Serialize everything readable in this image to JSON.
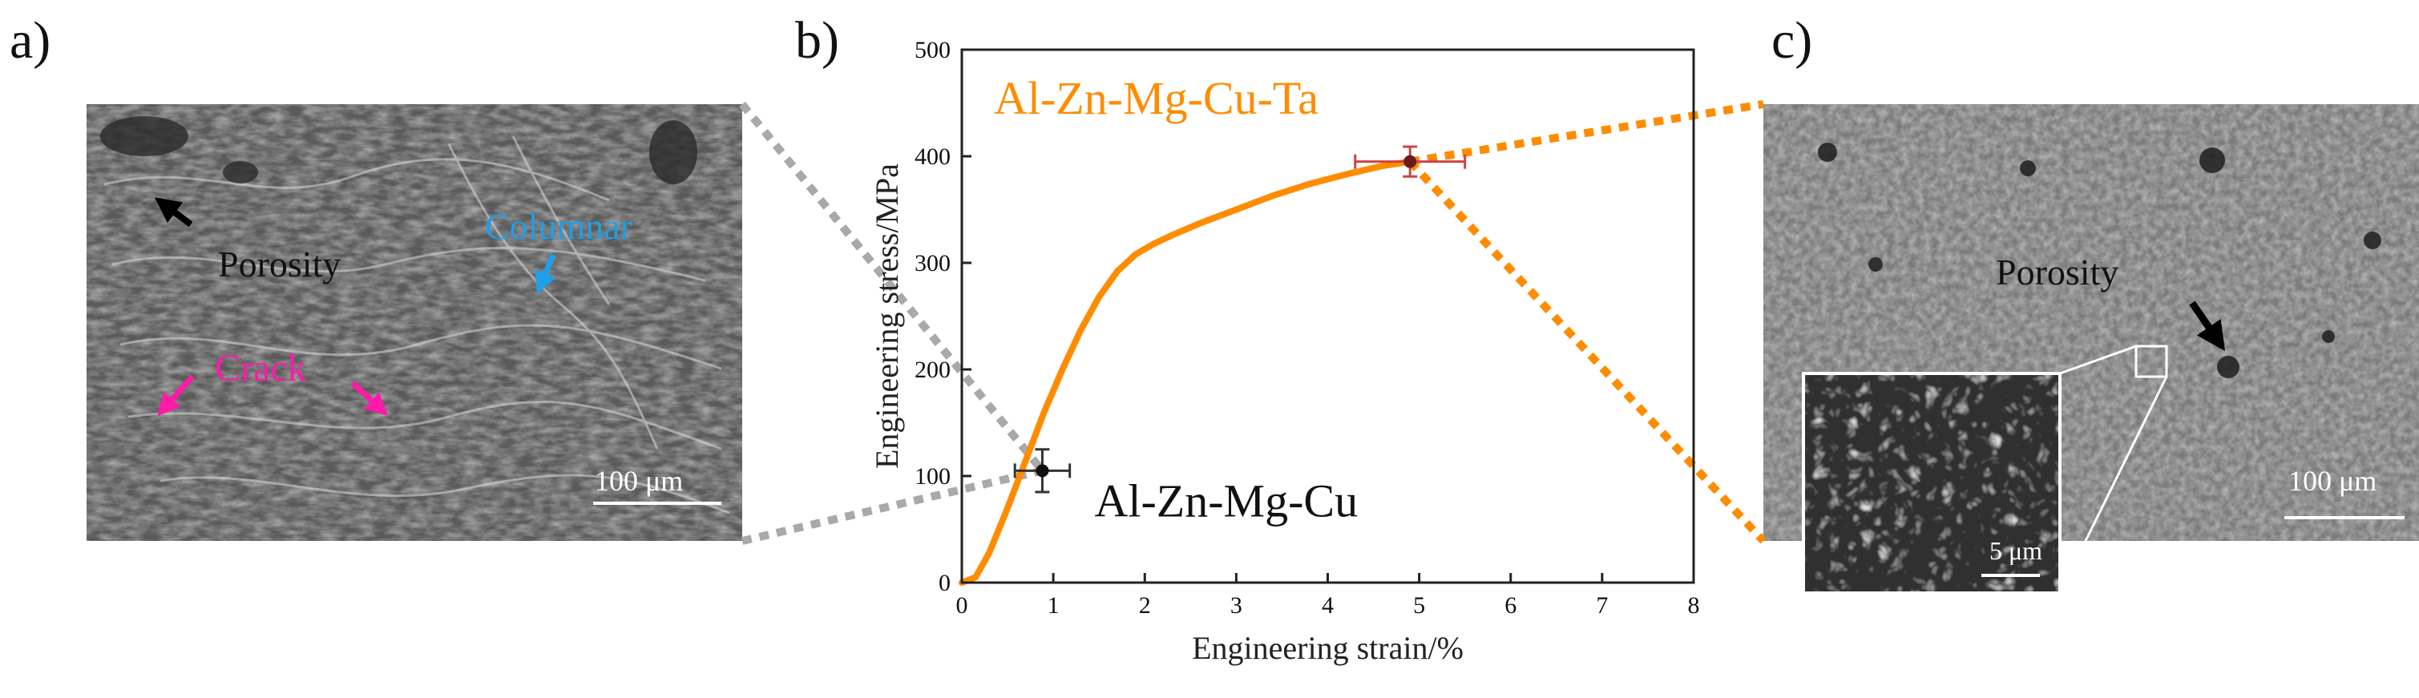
{
  "panels": {
    "a": {
      "letter": "a)",
      "labels": {
        "porosity": "Porosity",
        "columnar": "Columnar",
        "crack": "Crack",
        "scale": "100 μm"
      }
    },
    "b": {
      "letter": "b)"
    },
    "c": {
      "letter": "c)",
      "labels": {
        "porosity": "Porosity",
        "scale": "100 μm",
        "inset_scale": "5 μm"
      }
    }
  },
  "colors": {
    "ta_curve": "#ff8c00",
    "columnar": "#1e9fe8",
    "crack": "#ff1aa8",
    "connector_a": "#a9a9a9",
    "connector_c": "#ff8c00"
  },
  "chart_data": {
    "type": "line",
    "xlabel": "Engineering strain/%",
    "ylabel": "Engineering stress/MPa",
    "xlim": [
      0,
      8
    ],
    "ylim": [
      0,
      500
    ],
    "xticks": [
      0,
      1,
      2,
      3,
      4,
      5,
      6,
      7,
      8
    ],
    "yticks": [
      0,
      100,
      200,
      300,
      400,
      500
    ],
    "grid": false,
    "series": [
      {
        "name": "Al-Zn-Mg-Cu-Ta",
        "x": [
          0.0,
          0.15,
          0.3,
          0.5,
          0.7,
          0.9,
          1.1,
          1.3,
          1.5,
          1.7,
          1.9,
          2.1,
          2.3,
          2.6,
          3.0,
          3.4,
          3.8,
          4.2,
          4.6,
          4.9
        ],
        "y": [
          0,
          5,
          28,
          70,
          115,
          160,
          200,
          237,
          268,
          292,
          308,
          318,
          326,
          337,
          350,
          363,
          374,
          383,
          391,
          395
        ]
      }
    ],
    "points": [
      {
        "name": "Al-Zn-Mg-Cu",
        "x": 0.88,
        "y": 105,
        "xerr": 0.3,
        "yerr": 20
      },
      {
        "name": "Al-Zn-Mg-Cu-Ta",
        "x": 4.9,
        "y": 395,
        "xerr": 0.6,
        "yerr": 14
      }
    ]
  }
}
